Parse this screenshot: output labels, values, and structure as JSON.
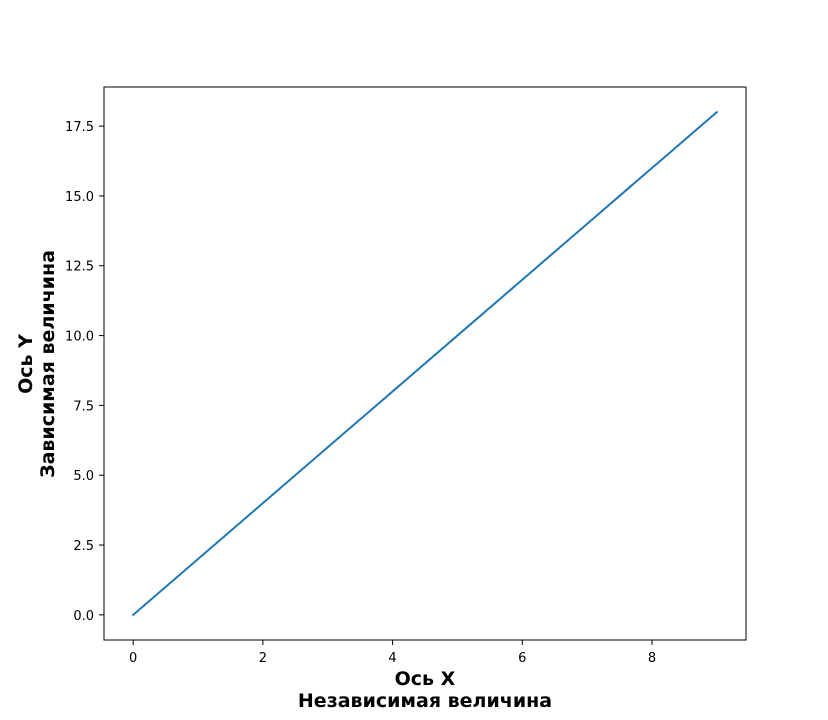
{
  "chart_data": {
    "type": "line",
    "x": [
      0,
      1,
      2,
      3,
      4,
      5,
      6,
      7,
      8,
      9
    ],
    "series": [
      {
        "values": [
          0,
          2,
          4,
          6,
          8,
          10,
          12,
          14,
          16,
          18
        ],
        "color": "#1f77b4"
      }
    ],
    "xlabel_lines": [
      "Ось X",
      "Независимая величина"
    ],
    "ylabel_lines": [
      "Ось Y",
      "Зависимая величина"
    ],
    "xlim": [
      -0.45,
      9.45
    ],
    "ylim": [
      -0.9,
      18.9
    ],
    "xticks": [
      0,
      2,
      4,
      6,
      8
    ],
    "xtick_labels": [
      "0",
      "2",
      "4",
      "6",
      "8"
    ],
    "yticks": [
      0,
      2.5,
      5,
      7.5,
      10,
      12.5,
      15,
      17.5
    ],
    "ytick_labels": [
      "0.0",
      "2.5",
      "5.0",
      "7.5",
      "10.0",
      "12.5",
      "15.0",
      "17.5"
    ],
    "grid": false,
    "legend": "none"
  }
}
